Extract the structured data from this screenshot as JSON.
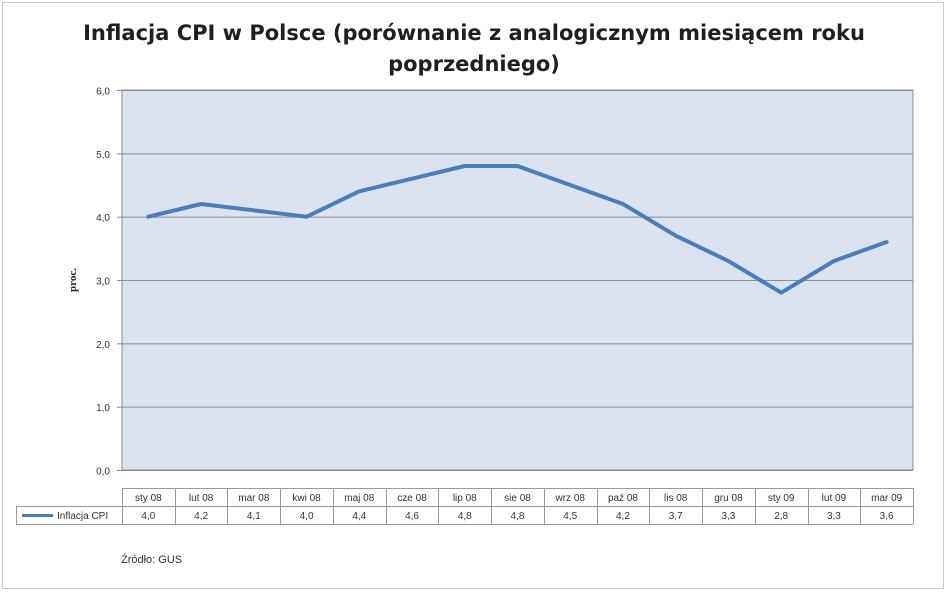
{
  "chart_data": {
    "type": "line",
    "title_lines": [
      "Inflacja CPI w Polsce (porównanie z analogicznym miesiącem roku",
      "poprzedniego)"
    ],
    "ylabel": "proc.",
    "xlabel": "",
    "ylim": [
      0,
      6
    ],
    "yticks": [
      "0,0",
      "1,0",
      "2,0",
      "3,0",
      "4,0",
      "5,0",
      "6,0"
    ],
    "grid": true,
    "categories": [
      "sty 08",
      "lut 08",
      "mar 08",
      "kwi 08",
      "maj 08",
      "cze 08",
      "lip 08",
      "sie 08",
      "wrz 08",
      "paź 08",
      "lis 08",
      "gru 08",
      "sty 09",
      "lut 09",
      "mar 09"
    ],
    "series": [
      {
        "name": "Inflacja CPI",
        "values": [
          4.0,
          4.2,
          4.1,
          4.0,
          4.4,
          4.6,
          4.8,
          4.8,
          4.5,
          4.2,
          3.7,
          3.3,
          2.8,
          3.3,
          3.6
        ],
        "labels": [
          "4,0",
          "4,2",
          "4,1",
          "4,0",
          "4,4",
          "4,6",
          "4,8",
          "4,8",
          "4,5",
          "4,2",
          "3,7",
          "3,3",
          "2,8",
          "3,3",
          "3,6"
        ]
      }
    ],
    "legend": "data-table",
    "source": "Źródło: GUS"
  },
  "colors": {
    "plot_bg": "#dbe3f1",
    "line": "#4a7ebb",
    "grid": "#8c8c8c"
  }
}
